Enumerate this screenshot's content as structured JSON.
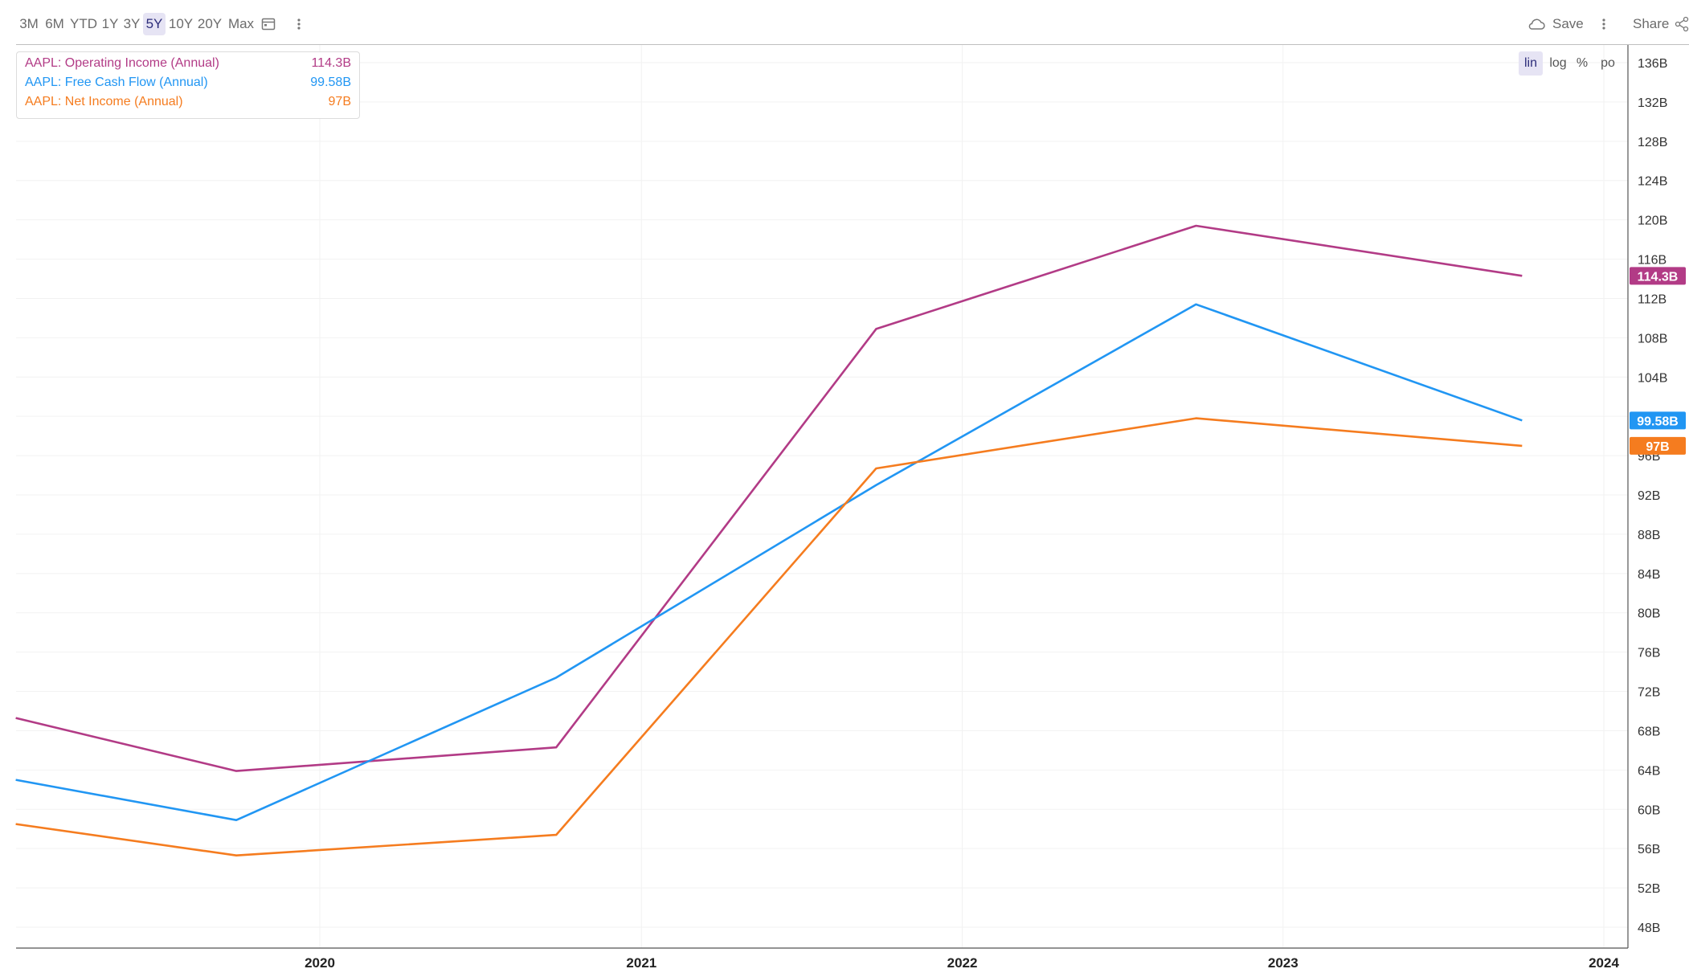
{
  "toolbar": {
    "timeframes": [
      "3M",
      "6M",
      "YTD",
      "1Y",
      "3Y",
      "5Y",
      "10Y",
      "20Y",
      "Max"
    ],
    "active_timeframe": "5Y",
    "save_label": "Save",
    "share_label": "Share"
  },
  "scale_buttons": [
    "lin",
    "log",
    "%",
    "po"
  ],
  "active_scale": "lin",
  "chart_data": {
    "type": "line",
    "xlabel": "",
    "ylabel": "",
    "x_ticks": [
      "2020",
      "2021",
      "2022",
      "2023",
      "2024"
    ],
    "y_ticks": [
      "48B",
      "52B",
      "56B",
      "60B",
      "64B",
      "68B",
      "72B",
      "76B",
      "80B",
      "84B",
      "88B",
      "92B",
      "96B",
      "100B",
      "104B",
      "108B",
      "112B",
      "116B",
      "120B",
      "124B",
      "128B",
      "132B",
      "136B"
    ],
    "ylim": [
      46,
      138
    ],
    "grid": true,
    "legend": "top-left",
    "series": [
      {
        "name": "AAPL: Operating Income (Annual)",
        "last_value": "114.3B",
        "color": "#b23b86",
        "points": [
          [
            "2019-01-20",
            69.3
          ],
          [
            "2019-09-28",
            63.9
          ],
          [
            "2020-09-26",
            66.3
          ],
          [
            "2021-09-25",
            108.9
          ],
          [
            "2022-09-24",
            119.4
          ],
          [
            "2023-09-30",
            114.3
          ]
        ]
      },
      {
        "name": "AAPL: Free Cash Flow (Annual)",
        "last_value": "99.58B",
        "color": "#2196f3",
        "points": [
          [
            "2019-01-20",
            63.0
          ],
          [
            "2019-09-28",
            58.9
          ],
          [
            "2020-09-26",
            73.4
          ],
          [
            "2021-09-25",
            93.0
          ],
          [
            "2022-09-24",
            111.4
          ],
          [
            "2023-09-30",
            99.58
          ]
        ]
      },
      {
        "name": "AAPL: Net Income (Annual)",
        "last_value": "97B",
        "color": "#f57c1f",
        "points": [
          [
            "2019-01-20",
            58.5
          ],
          [
            "2019-09-28",
            55.3
          ],
          [
            "2020-09-26",
            57.4
          ],
          [
            "2021-09-25",
            94.7
          ],
          [
            "2022-09-24",
            99.8
          ],
          [
            "2023-09-30",
            97.0
          ]
        ]
      }
    ]
  }
}
